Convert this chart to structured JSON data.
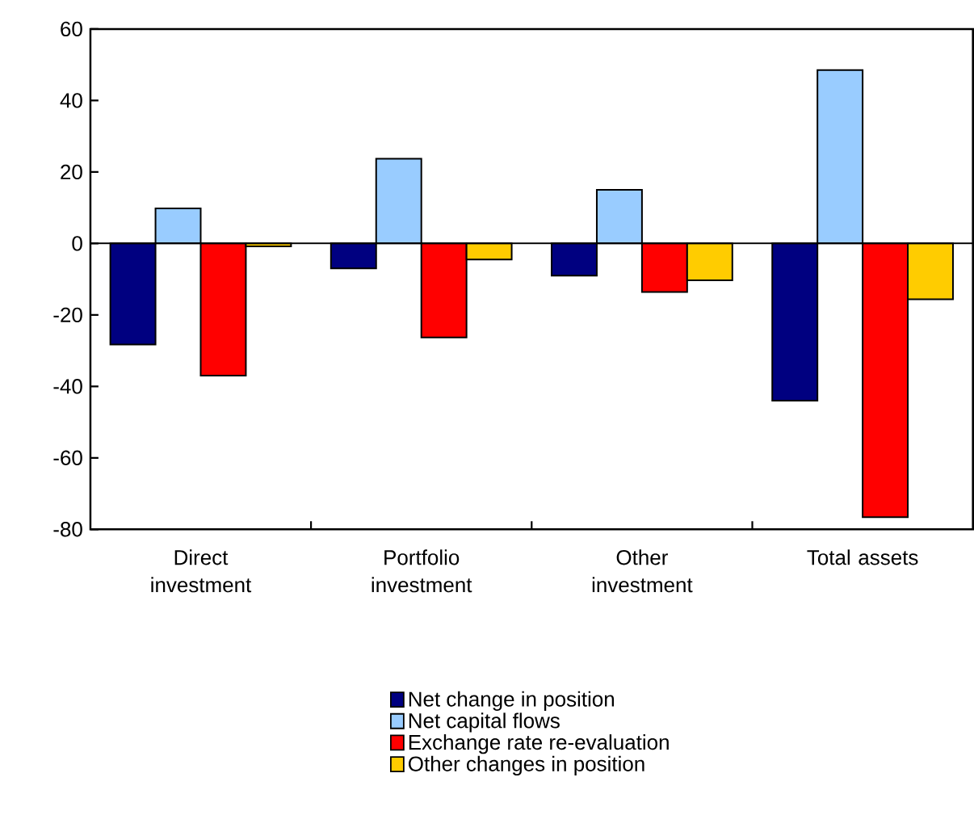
{
  "chart_data": {
    "type": "bar",
    "categories": [
      "Direct investment",
      "Portfolio investment",
      "Other investment",
      "Total assets"
    ],
    "series": [
      {
        "name": "Net change in position",
        "color": "#000080",
        "values": [
          -28.3,
          -7,
          -9,
          -44
        ]
      },
      {
        "name": "Net capital flows",
        "color": "#99ccff",
        "values": [
          9.8,
          23.7,
          15,
          48.5
        ]
      },
      {
        "name": "Exchange rate re-evaluation",
        "color": "#ff0000",
        "values": [
          -37,
          -26.3,
          -13.6,
          -76.6
        ]
      },
      {
        "name": "Other changes in position",
        "color": "#ffcc00",
        "values": [
          -0.8,
          -4.5,
          -10.3,
          -15.6
        ]
      }
    ],
    "ylim": [
      -80,
      60
    ],
    "yticks": [
      -80,
      -60,
      -40,
      -20,
      0,
      20,
      40,
      60
    ],
    "legend": "bottom"
  }
}
